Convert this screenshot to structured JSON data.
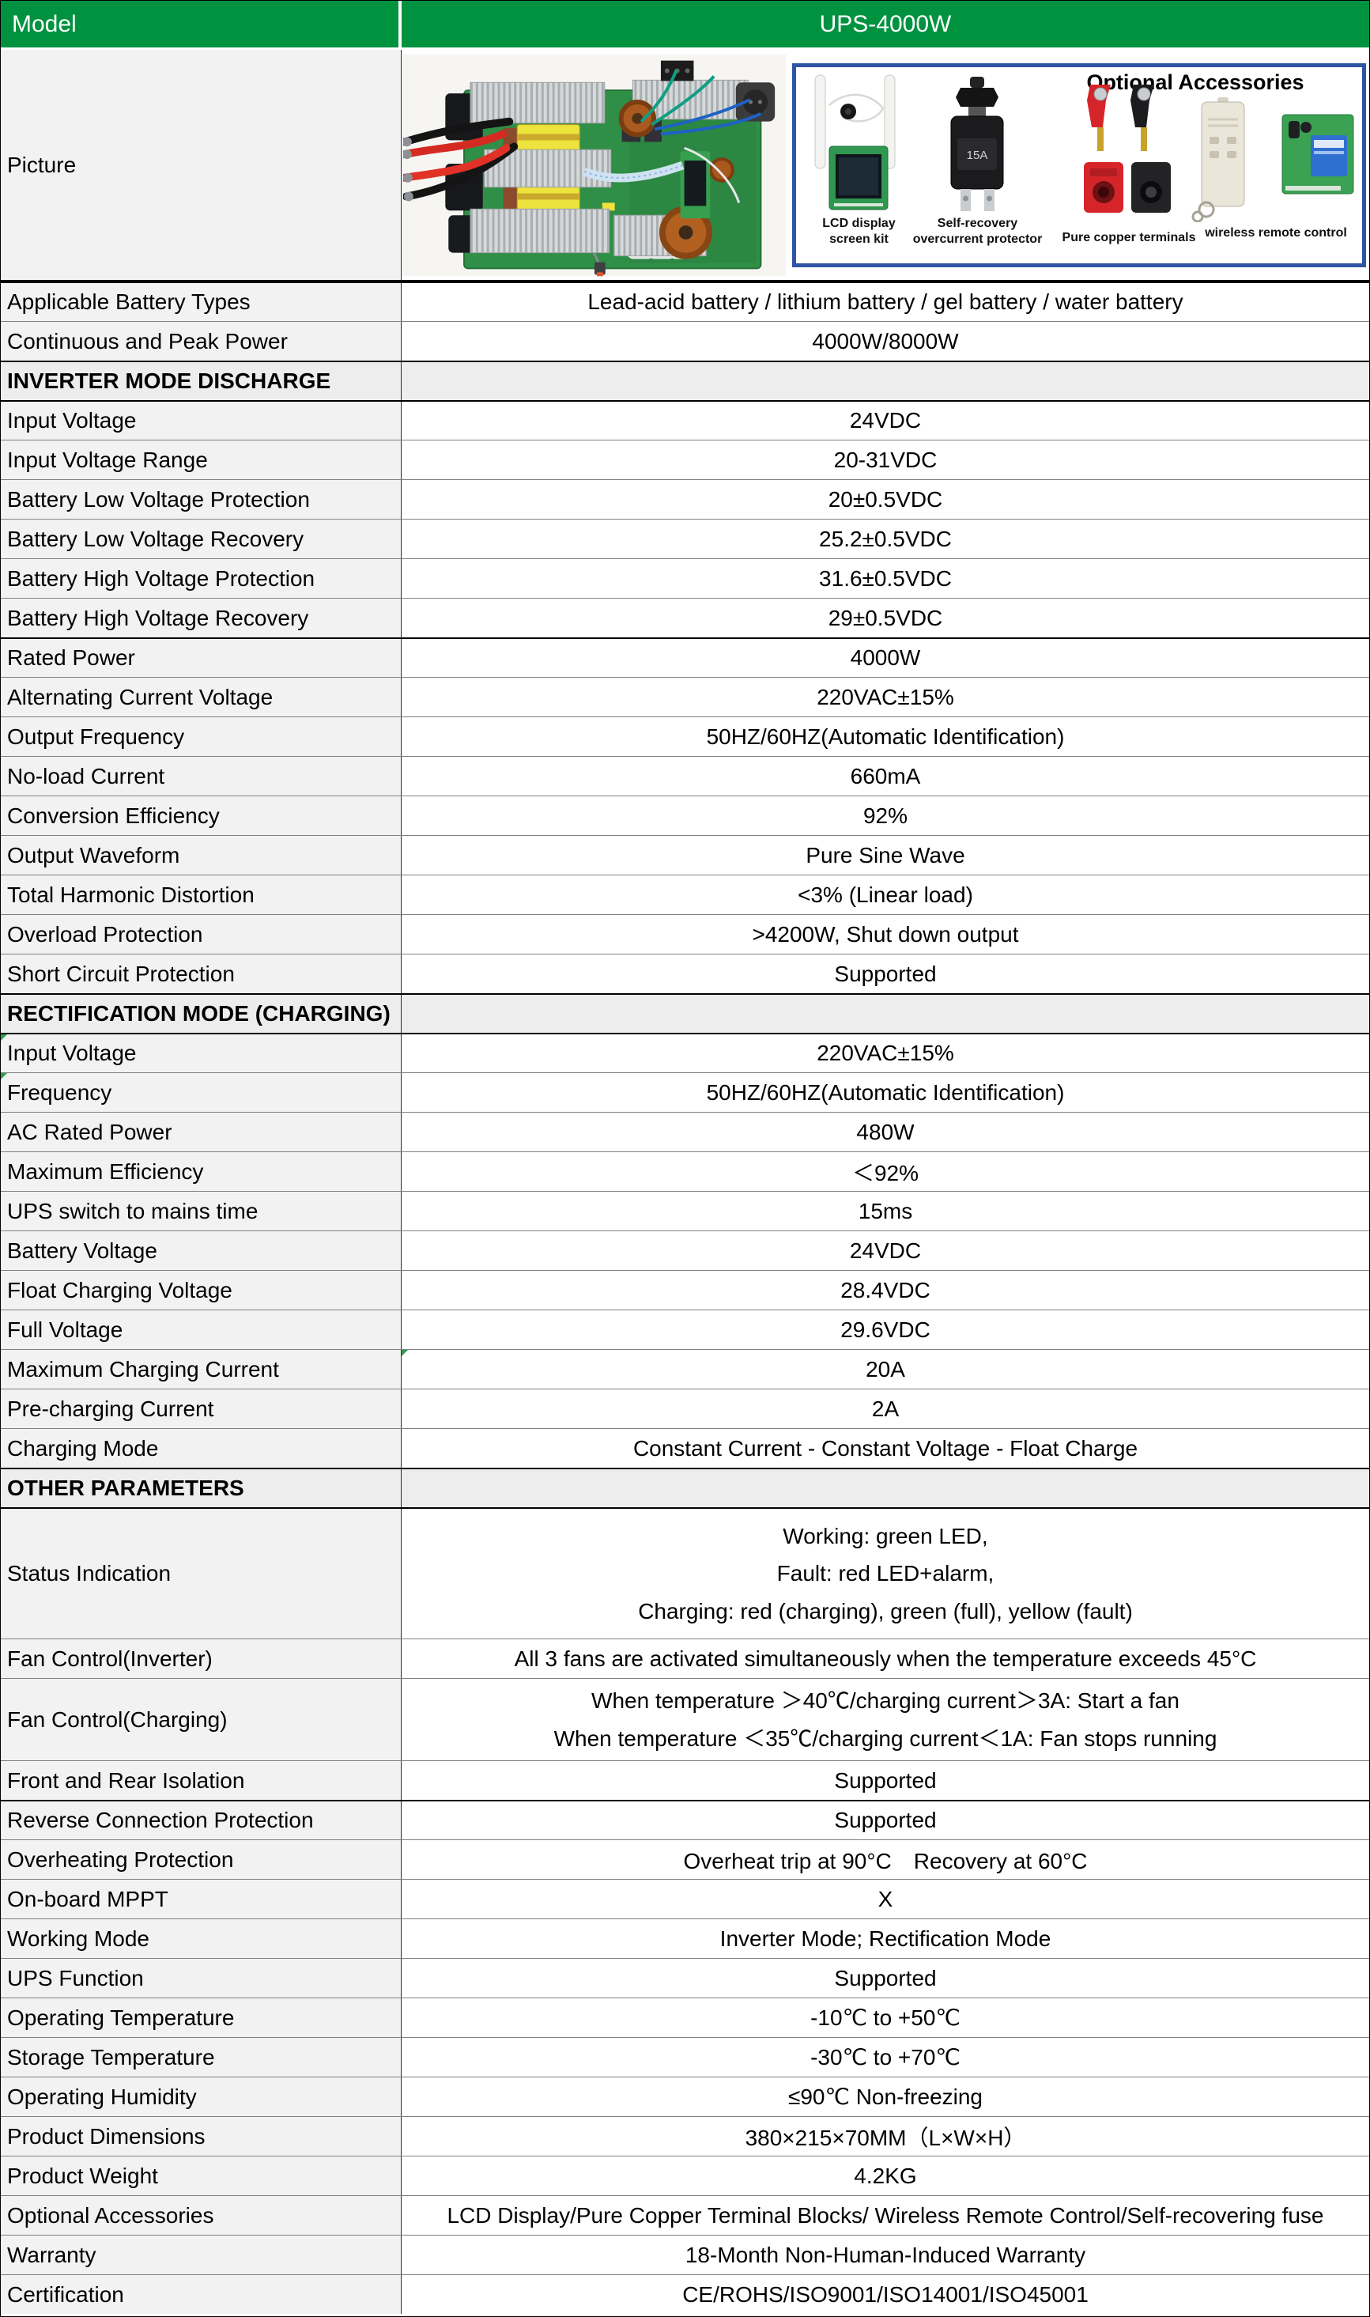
{
  "colors": {
    "header_green": "#00923F",
    "panel_border_blue": "#2E55A4",
    "label_cell_bg": "#F2F2F2",
    "section_row_bg": "#EDEDED",
    "grid_line": "#808080",
    "heavy_line": "#000000",
    "flag_green": "#2E9E4F"
  },
  "header": {
    "model_label": "Model",
    "model_value": "UPS-4000W"
  },
  "picture_row": {
    "label": "Picture",
    "photo_icon": "inverter-circuit-board-photo",
    "accessories": {
      "title": "Optional Accessories",
      "items": [
        {
          "icon": "lcd-display-kit",
          "caption_lines": [
            "LCD display",
            "screen kit"
          ]
        },
        {
          "icon": "self-recovery-overcurrent-protector",
          "badge": "15A",
          "caption_lines": [
            "Self-recovery",
            "overcurrent protector"
          ]
        },
        {
          "icon": "pure-copper-terminals",
          "caption_lines": [
            "Pure copper terminals"
          ]
        },
        {
          "icon": "wireless-remote-control",
          "caption_lines": [
            "wireless remote control"
          ]
        }
      ]
    }
  },
  "rows": [
    {
      "t": "spec",
      "l": "Applicable Battery Types",
      "v": "Lead-acid battery / lithium battery / gel battery / water battery",
      "hb": true
    },
    {
      "t": "spec",
      "l": "Continuous and Peak Power",
      "v": "4000W/8000W"
    },
    {
      "t": "section",
      "l": "INVERTER MODE DISCHARGE",
      "v": "",
      "hb": true
    },
    {
      "t": "spec",
      "l": "Input Voltage",
      "v": "24VDC",
      "hb": true
    },
    {
      "t": "spec",
      "l": "Input Voltage Range",
      "v": "20-31VDC"
    },
    {
      "t": "spec",
      "l": "Battery Low Voltage Protection",
      "v": "20±0.5VDC"
    },
    {
      "t": "spec",
      "l": "Battery Low Voltage Recovery",
      "v": "25.2±0.5VDC"
    },
    {
      "t": "spec",
      "l": "Battery High Voltage Protection",
      "v": "31.6±0.5VDC"
    },
    {
      "t": "spec",
      "l": "Battery High Voltage Recovery",
      "v": "29±0.5VDC"
    },
    {
      "t": "spec",
      "l": "Rated Power",
      "v": "4000W",
      "hb": true
    },
    {
      "t": "spec",
      "l": "Alternating Current Voltage",
      "v": "220VAC±15%"
    },
    {
      "t": "spec",
      "l": "Output Frequency",
      "v": "50HZ/60HZ(Automatic Identification)"
    },
    {
      "t": "spec",
      "l": "No-load Current",
      "v": "660mA"
    },
    {
      "t": "spec",
      "l": "Conversion Efficiency",
      "v": "92%"
    },
    {
      "t": "spec",
      "l": "Output Waveform",
      "v": "Pure Sine Wave"
    },
    {
      "t": "spec",
      "l": "Total Harmonic Distortion",
      "v": "<3% (Linear load)"
    },
    {
      "t": "spec",
      "l": "Overload Protection",
      "v": ">4200W, Shut down output"
    },
    {
      "t": "spec",
      "l": "Short Circuit Protection",
      "v": "Supported"
    },
    {
      "t": "section",
      "l": "RECTIFICATION MODE (CHARGING)",
      "v": "",
      "hb": true
    },
    {
      "t": "spec",
      "l": "Input Voltage",
      "v": "220VAC±15%",
      "hb": true,
      "tl": true
    },
    {
      "t": "spec",
      "l": "Frequency",
      "v": "50HZ/60HZ(Automatic Identification)",
      "tl": true
    },
    {
      "t": "spec",
      "l": "AC Rated Power",
      "v": "480W"
    },
    {
      "t": "spec",
      "l": "Maximum Efficiency",
      "v": "＜92%"
    },
    {
      "t": "spec",
      "l": "UPS switch to mains time",
      "v": "15ms"
    },
    {
      "t": "spec",
      "l": "Battery Voltage",
      "v": "24VDC"
    },
    {
      "t": "spec",
      "l": "Float Charging Voltage",
      "v": "28.4VDC"
    },
    {
      "t": "spec",
      "l": "Full Voltage",
      "v": "29.6VDC"
    },
    {
      "t": "spec",
      "l": "Maximum Charging Current",
      "v": "20A",
      "tv": true
    },
    {
      "t": "spec",
      "l": "Pre-charging Current",
      "v": "2A"
    },
    {
      "t": "spec",
      "l": "Charging Mode",
      "v": "Constant Current - Constant Voltage - Float Charge"
    },
    {
      "t": "section",
      "l": "OTHER PARAMETERS",
      "v": "",
      "hb": true
    },
    {
      "t": "spec",
      "l": "Status Indication",
      "h": "tall3",
      "hb": true,
      "lines": [
        "Working: green LED,",
        "Fault: red LED+alarm,",
        "Charging: red (charging), green (full), yellow (fault)"
      ]
    },
    {
      "t": "spec",
      "l": "Fan Control(Inverter)",
      "v": "All 3 fans are activated simultaneously when the temperature exceeds 45°C"
    },
    {
      "t": "spec",
      "l": "Fan Control(Charging)",
      "h": "tall2",
      "lines": [
        "When temperature ＞40℃/charging current＞3A: Start a fan",
        "When temperature ＜35℃/charging current＜1A: Fan stops running"
      ]
    },
    {
      "t": "spec",
      "l": "Front and Rear Isolation",
      "v": "Supported"
    },
    {
      "t": "spec",
      "l": "Reverse Connection Protection",
      "v": "Supported",
      "hb": true
    },
    {
      "t": "spec",
      "l": "Overheating Protection",
      "v": "Overheat trip at 90°C　Recovery at 60°C"
    },
    {
      "t": "spec",
      "l": "On-board MPPT",
      "v": "X"
    },
    {
      "t": "spec",
      "l": "Working Mode",
      "v": "Inverter Mode; Rectification Mode"
    },
    {
      "t": "spec",
      "l": "UPS Function",
      "v": "Supported"
    },
    {
      "t": "spec",
      "l": "Operating Temperature",
      "v": "-10℃ to +50℃"
    },
    {
      "t": "spec",
      "l": "Storage Temperature",
      "v": "-30℃ to +70℃"
    },
    {
      "t": "spec",
      "l": "Operating Humidity",
      "v": "≤90℃ Non-freezing"
    },
    {
      "t": "spec",
      "l": "Product Dimensions",
      "v": "380×215×70MM（L×W×H）"
    },
    {
      "t": "spec",
      "l": "Product Weight",
      "v": "4.2KG"
    },
    {
      "t": "spec",
      "l": "Optional Accessories",
      "v": "LCD Display/Pure Copper Terminal Blocks/ Wireless Remote Control/Self-recovering fuse"
    },
    {
      "t": "spec",
      "l": "Warranty",
      "v": "18-Month Non-Human-Induced Warranty"
    },
    {
      "t": "spec",
      "l": "Certification",
      "v": "CE/ROHS/ISO9001/ISO14001/ISO45001"
    }
  ]
}
